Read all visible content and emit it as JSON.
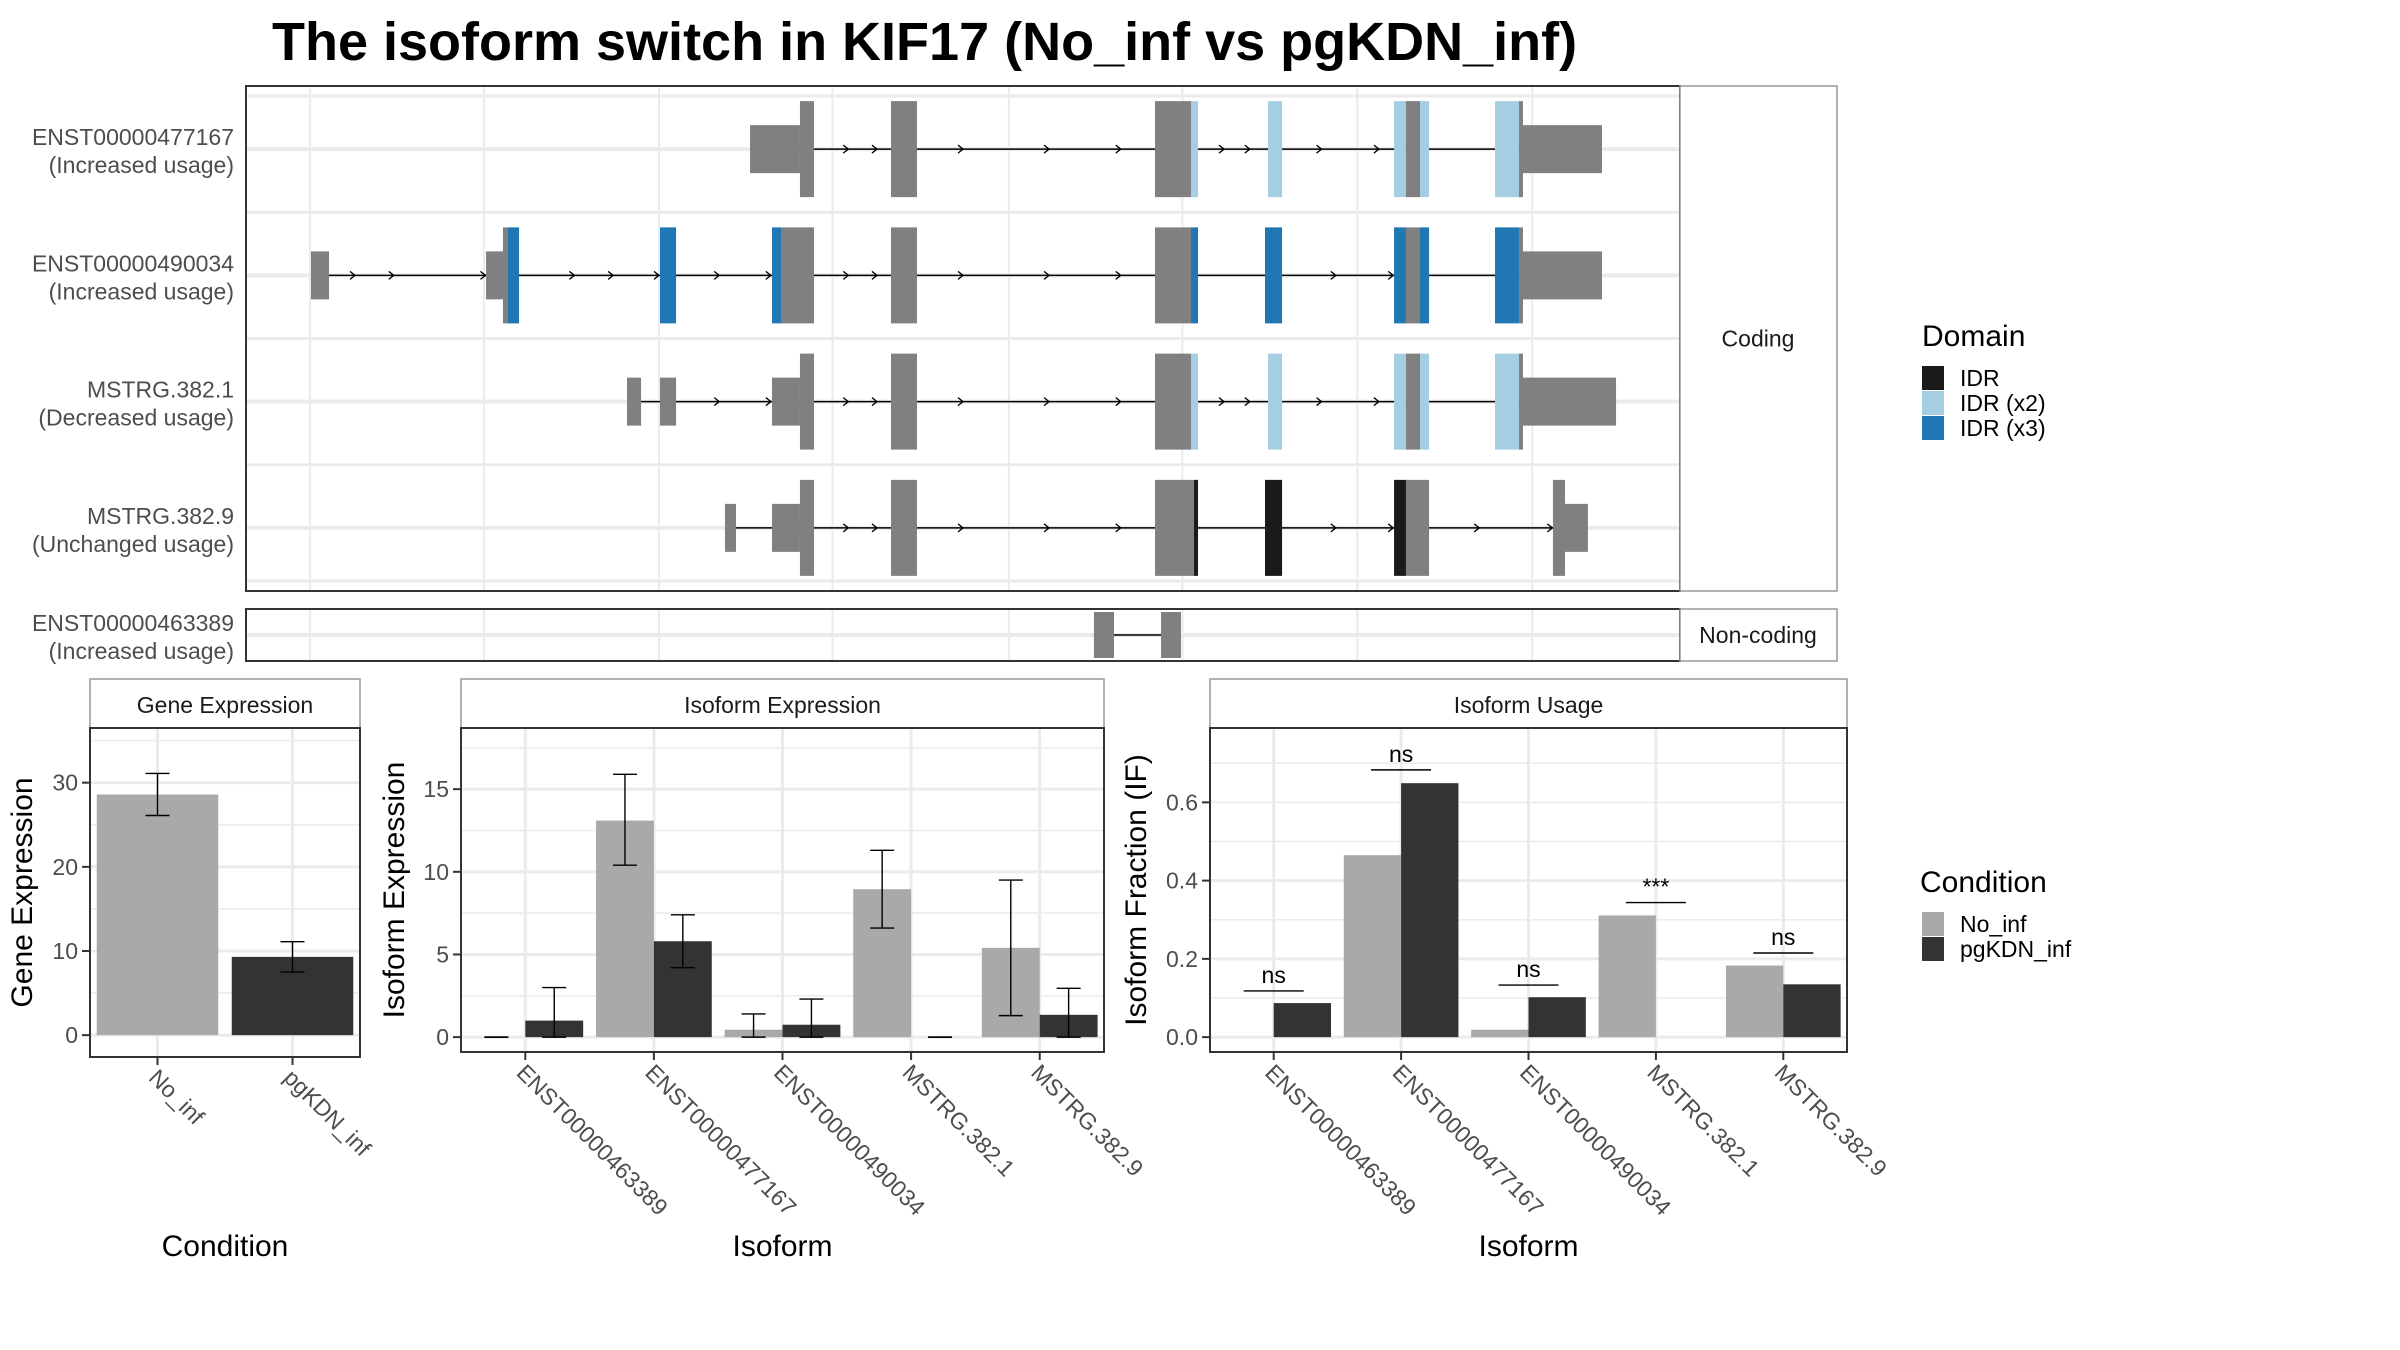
{
  "title": "The isoform switch in KIF17 (No_inf vs pgKDN_inf)",
  "colors": {
    "utr_cds": "#808080",
    "IDR": "#1a1a1a",
    "IDR (x2)": "#a6cee3",
    "IDR (x3)": "#1f78b4",
    "No_inf": "#a9a9a9",
    "pgKDN_inf": "#333333",
    "grid": "#ebebeb",
    "intron": "#000000"
  },
  "transcript_panel": {
    "x_range": [
      0,
      1000
    ],
    "gridlines": [
      44.6,
      166,
      288,
      409,
      532,
      653,
      775,
      897
    ],
    "coding_strip_label": "Coding",
    "noncoding_strip_label": "Non-coding",
    "coding": [
      {
        "id": "ENST00000477167",
        "usage": "(Increased usage)",
        "arrows": [
          420,
          440,
          500,
          560,
          610,
          682,
          700,
          750,
          790
        ],
        "exons": [
          {
            "start": 351.5,
            "end": 386.3,
            "type": "utr"
          },
          {
            "start": 386.3,
            "end": 396.1,
            "type": "cds"
          },
          {
            "start": 449.8,
            "end": 467.9,
            "type": "cds"
          },
          {
            "start": 633.9,
            "end": 659.0,
            "type": "cds"
          },
          {
            "start": 659.0,
            "end": 663.9,
            "type": "cds",
            "domain": "IDR (x2)"
          },
          {
            "start": 712.7,
            "end": 722.5,
            "type": "cds",
            "domain": "IDR (x2)"
          },
          {
            "start": 800.6,
            "end": 808.9,
            "type": "cds",
            "domain": "IDR (x2)"
          },
          {
            "start": 808.9,
            "end": 818.7,
            "type": "cds"
          },
          {
            "start": 818.7,
            "end": 825.0,
            "type": "cds",
            "domain": "IDR (x2)"
          },
          {
            "start": 871.0,
            "end": 887.7,
            "type": "cds",
            "domain": "IDR (x2)"
          },
          {
            "start": 887.7,
            "end": 890.5,
            "type": "cds"
          },
          {
            "start": 890.5,
            "end": 945.6,
            "type": "utr"
          }
        ]
      },
      {
        "id": "ENST00000490034",
        "usage": "(Increased usage)",
        "arrows": [
          76,
          103,
          167,
          229,
          256,
          288,
          330,
          366,
          420,
          440,
          500,
          560,
          610,
          760,
          800
        ],
        "exons": [
          {
            "start": 45.3,
            "end": 57.9,
            "type": "utr"
          },
          {
            "start": 167.4,
            "end": 179.2,
            "type": "utr"
          },
          {
            "start": 179.2,
            "end": 182.7,
            "type": "cds"
          },
          {
            "start": 182.7,
            "end": 190.4,
            "type": "cds",
            "domain": "IDR (x3)"
          },
          {
            "start": 288.7,
            "end": 299.9,
            "type": "cds",
            "domain": "IDR (x3)"
          },
          {
            "start": 366.8,
            "end": 373.1,
            "type": "cds",
            "domain": "IDR (x3)"
          },
          {
            "start": 373.1,
            "end": 396.1,
            "type": "cds"
          },
          {
            "start": 449.8,
            "end": 467.9,
            "type": "cds"
          },
          {
            "start": 633.9,
            "end": 659.0,
            "type": "cds"
          },
          {
            "start": 659.0,
            "end": 663.9,
            "type": "cds",
            "domain": "IDR (x3)"
          },
          {
            "start": 710.6,
            "end": 722.5,
            "type": "cds",
            "domain": "IDR (x3)"
          },
          {
            "start": 800.6,
            "end": 808.9,
            "type": "cds",
            "domain": "IDR (x3)"
          },
          {
            "start": 808.9,
            "end": 818.7,
            "type": "cds"
          },
          {
            "start": 818.7,
            "end": 825.0,
            "type": "cds",
            "domain": "IDR (x3)"
          },
          {
            "start": 871.0,
            "end": 887.7,
            "type": "cds",
            "domain": "IDR (x3)"
          },
          {
            "start": 887.7,
            "end": 890.5,
            "type": "cds"
          },
          {
            "start": 890.5,
            "end": 945.6,
            "type": "utr"
          }
        ]
      },
      {
        "id": "MSTRG.382.1",
        "usage": "(Decreased usage)",
        "arrows": [
          330,
          366,
          420,
          440,
          500,
          560,
          610,
          682,
          700,
          750,
          790
        ],
        "exons": [
          {
            "start": 265.7,
            "end": 275.5,
            "type": "utr"
          },
          {
            "start": 288.7,
            "end": 299.9,
            "type": "utr"
          },
          {
            "start": 366.8,
            "end": 386.3,
            "type": "utr"
          },
          {
            "start": 386.3,
            "end": 396.1,
            "type": "cds"
          },
          {
            "start": 449.8,
            "end": 467.9,
            "type": "cds"
          },
          {
            "start": 633.9,
            "end": 659.0,
            "type": "cds"
          },
          {
            "start": 659.0,
            "end": 663.9,
            "type": "cds",
            "domain": "IDR (x2)"
          },
          {
            "start": 712.7,
            "end": 722.5,
            "type": "cds",
            "domain": "IDR (x2)"
          },
          {
            "start": 800.6,
            "end": 808.9,
            "type": "cds",
            "domain": "IDR (x2)"
          },
          {
            "start": 808.9,
            "end": 818.7,
            "type": "cds"
          },
          {
            "start": 818.7,
            "end": 825.0,
            "type": "cds",
            "domain": "IDR (x2)"
          },
          {
            "start": 871.0,
            "end": 887.7,
            "type": "cds",
            "domain": "IDR (x2)"
          },
          {
            "start": 887.7,
            "end": 890.5,
            "type": "cds"
          },
          {
            "start": 890.5,
            "end": 955.4,
            "type": "utr"
          }
        ]
      },
      {
        "id": "MSTRG.382.9",
        "usage": "(Unchanged usage)",
        "arrows": [
          420,
          440,
          500,
          560,
          610,
          760,
          800,
          860,
          911
        ],
        "exons": [
          {
            "start": 334.0,
            "end": 341.7,
            "type": "utr"
          },
          {
            "start": 366.8,
            "end": 386.3,
            "type": "utr"
          },
          {
            "start": 386.3,
            "end": 396.1,
            "type": "cds"
          },
          {
            "start": 449.8,
            "end": 467.9,
            "type": "cds"
          },
          {
            "start": 633.9,
            "end": 661.1,
            "type": "cds"
          },
          {
            "start": 661.1,
            "end": 663.9,
            "type": "cds",
            "domain": "IDR"
          },
          {
            "start": 710.6,
            "end": 722.5,
            "type": "cds",
            "domain": "IDR"
          },
          {
            "start": 800.6,
            "end": 808.9,
            "type": "cds",
            "domain": "IDR"
          },
          {
            "start": 808.9,
            "end": 825.0,
            "type": "cds"
          },
          {
            "start": 911.4,
            "end": 919.8,
            "type": "cds"
          },
          {
            "start": 919.8,
            "end": 935.8,
            "type": "utr"
          }
        ]
      }
    ],
    "noncoding": [
      {
        "id": "ENST00000463389",
        "usage": "(Increased usage)",
        "arrows": [],
        "exons": [
          {
            "start": 591.3,
            "end": 605.3,
            "type": "nc"
          },
          {
            "start": 638.1,
            "end": 652.0,
            "type": "nc"
          }
        ]
      }
    ]
  },
  "legend_domain": {
    "title": "Domain",
    "items": [
      "IDR",
      "IDR (x2)",
      "IDR (x3)"
    ]
  },
  "legend_condition": {
    "title": "Condition",
    "items": [
      "No_inf",
      "pgKDN_inf"
    ]
  },
  "chart_data": [
    {
      "type": "bar",
      "title": "Gene Expression",
      "xlabel": "Condition",
      "ylabel": "Gene Expression",
      "ylim": [
        -2.6,
        36.5
      ],
      "yticks": [
        0,
        10,
        20,
        30
      ],
      "grid": true,
      "categories": [
        "No_inf",
        "pgKDN_inf"
      ],
      "values": [
        28.6,
        9.3
      ],
      "error_low": [
        26.1,
        7.5
      ],
      "error_high": [
        31.1,
        11.1
      ]
    },
    {
      "type": "bar",
      "title": "Isoform Expression",
      "xlabel": "Isoform",
      "ylabel": "Isoform Expression",
      "ylim": [
        -0.9,
        18.7
      ],
      "yticks": [
        0,
        5,
        10,
        15
      ],
      "grid": true,
      "categories": [
        "ENST00000463389",
        "ENST00000477167",
        "ENST00000490034",
        "MSTRG.382.1",
        "MSTRG.382.9"
      ],
      "series": [
        {
          "name": "No_inf",
          "values": [
            0,
            13.1,
            0.45,
            8.95,
            5.4
          ],
          "error_low": [
            0,
            10.4,
            0,
            6.6,
            1.3
          ],
          "error_high": [
            0,
            15.9,
            1.4,
            11.3,
            9.5
          ]
        },
        {
          "name": "pgKDN_inf",
          "values": [
            1.0,
            5.8,
            0.75,
            0,
            1.35
          ],
          "error_low": [
            0,
            4.2,
            0,
            0,
            0
          ],
          "error_high": [
            3.0,
            7.4,
            2.3,
            0,
            2.95
          ]
        }
      ]
    },
    {
      "type": "bar",
      "title": "Isoform Usage",
      "xlabel": "Isoform",
      "ylabel": "Isoform Fraction (IF)",
      "ylim": [
        -0.038,
        0.79
      ],
      "yticks": [
        0.0,
        0.2,
        0.4,
        0.6
      ],
      "ytick_labels": [
        "0.0",
        "0.2",
        "0.4",
        "0.6"
      ],
      "grid": true,
      "categories": [
        "ENST00000463389",
        "ENST00000477167",
        "ENST00000490034",
        "MSTRG.382.1",
        "MSTRG.382.9"
      ],
      "series": [
        {
          "name": "No_inf",
          "values": [
            0,
            0.465,
            0.019,
            0.311,
            0.183
          ]
        },
        {
          "name": "pgKDN_inf",
          "values": [
            0.087,
            0.649,
            0.102,
            0,
            0.135
          ]
        }
      ],
      "significance": [
        {
          "label": "ns",
          "y": 0.118
        },
        {
          "label": "ns",
          "y": 0.683
        },
        {
          "label": "ns",
          "y": 0.133
        },
        {
          "label": "***",
          "y": 0.344
        },
        {
          "label": "ns",
          "y": 0.215
        }
      ]
    }
  ]
}
